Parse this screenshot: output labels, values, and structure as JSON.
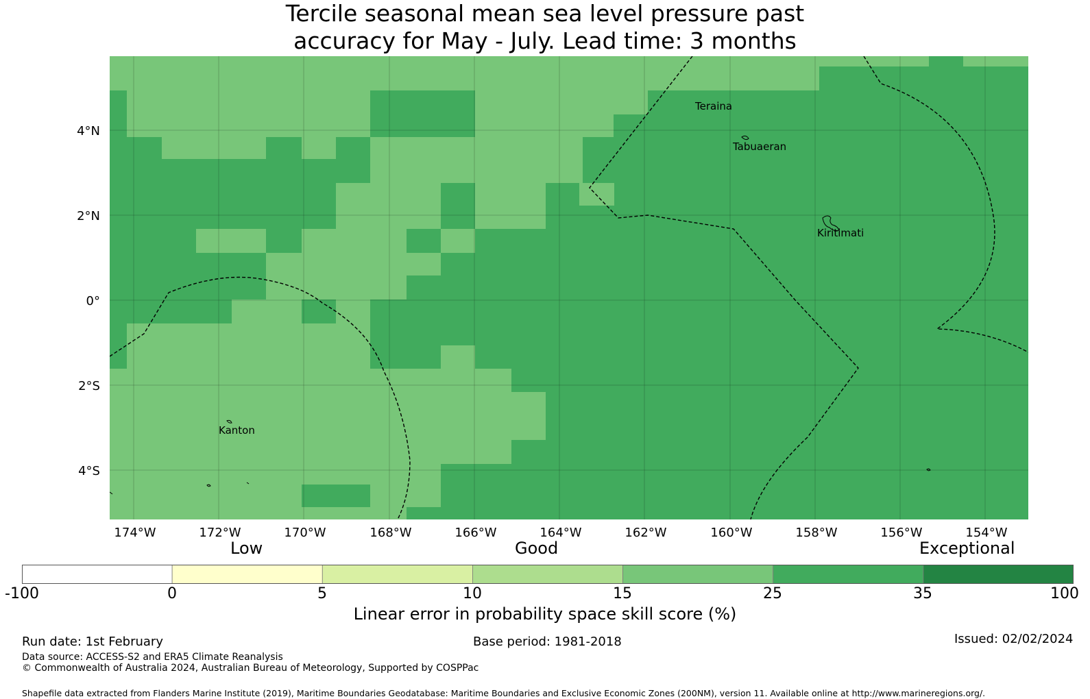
{
  "title_line1": "Tercile seasonal mean sea level pressure past",
  "title_line2": "accuracy for May - July. Lead time: 3 months",
  "map": {
    "lat_ticks": [
      "4°N",
      "2°N",
      "0°",
      "2°S",
      "4°S"
    ],
    "lon_ticks": [
      "174°W",
      "172°W",
      "170°W",
      "168°W",
      "166°W",
      "164°W",
      "162°W",
      "160°W",
      "158°W",
      "156°W",
      "154°W"
    ],
    "places": {
      "teraina": "Teraina",
      "tabuaeran": "Tabuaeran",
      "kiritimati": "Kiritimati",
      "kanton": "Kanton"
    },
    "colors": {
      "category_15_25": "#78c679",
      "category_25_35": "#41ab5d"
    }
  },
  "colorbar": {
    "qualitative": {
      "low": "Low",
      "good": "Good",
      "exceptional": "Exceptional"
    },
    "ticks": [
      "-100",
      "0",
      "5",
      "10",
      "15",
      "25",
      "35",
      "100"
    ],
    "colors": [
      "#ffffff",
      "#ffffcc",
      "#d9f0a3",
      "#addd8e",
      "#78c679",
      "#41ab5d",
      "#238443"
    ],
    "label": "Linear error in probability space skill score (%)"
  },
  "footer": {
    "run_date": "Run date: 1st February",
    "base_period": "Base period: 1981-2018",
    "issued": "Issued: 02/02/2024",
    "data_source": "Data source: ACCESS-S2 and ERA5 Climate Reanalysis",
    "copyright": "© Commonwealth of Australia 2024, Australian Bureau of Meteorology, Supported by COSPPac",
    "shapefile": "Shapefile data extracted from Flanders Marine Institute (2019), Maritime Boundaries Geodatabase: Maritime Boundaries and Exclusive Economic Zones (200NM), version 11. Available online at http://www.marineregions.org/."
  }
}
